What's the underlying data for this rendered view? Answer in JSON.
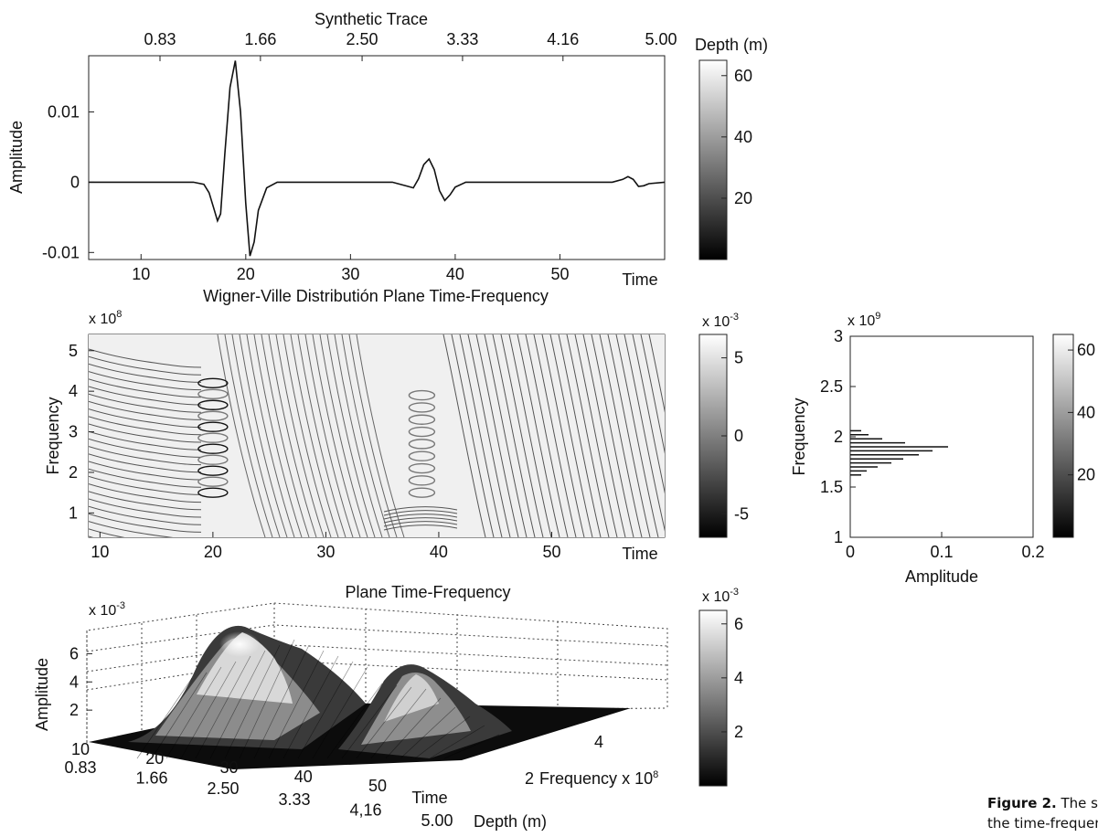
{
  "chart_data": [
    {
      "id": "trace",
      "type": "line",
      "title": "Synthetic Trace",
      "xlabel": "Time",
      "ylabel": "Amplitude",
      "xlim": [
        5,
        60
      ],
      "ylim": [
        -0.011,
        0.018
      ],
      "x_ticks": [
        10,
        20,
        30,
        40,
        50
      ],
      "y_ticks": [
        -0.01,
        0,
        0.01
      ],
      "y_tick_labels": [
        "-0.01",
        "0",
        "0.01"
      ],
      "top_axis_label": "",
      "top_ticks": [
        0.83,
        1.66,
        2.5,
        3.33,
        4.16,
        5.0
      ],
      "top_tick_labels": [
        "0.83",
        "1.66",
        "2.50",
        "3.33",
        "4.16",
        "5.00"
      ],
      "colorbar": {
        "label": "Depth (m)",
        "ticks": [
          20,
          40,
          60
        ],
        "range": [
          0,
          65
        ]
      },
      "series": [
        {
          "x": [
            5,
            10,
            15,
            16,
            16.5,
            17,
            17.3,
            17.6,
            18,
            18.5,
            19,
            19.5,
            20,
            20.4,
            20.8,
            21.2,
            22,
            23,
            25,
            30,
            34,
            35.5,
            36,
            36.5,
            37,
            37.5,
            38,
            38.5,
            39,
            39.5,
            40,
            41,
            45,
            50,
            55,
            56,
            56.5,
            57,
            57.5,
            58,
            58.5,
            60
          ],
          "y": [
            0,
            0,
            0,
            -0.0003,
            -0.0015,
            -0.004,
            -0.0055,
            -0.0045,
            0.004,
            0.0135,
            0.0173,
            0.01,
            -0.003,
            -0.0105,
            -0.0085,
            -0.004,
            -0.0008,
            0,
            0,
            0,
            0,
            -0.0006,
            -0.0008,
            0.0005,
            0.0025,
            0.0033,
            0.0018,
            -0.0012,
            -0.0026,
            -0.0018,
            -0.0007,
            0,
            0,
            0,
            0,
            0.0004,
            0.0008,
            0.0004,
            -0.0006,
            -0.0005,
            -0.0002,
            0
          ]
        }
      ]
    },
    {
      "id": "wvd",
      "type": "contour",
      "title": "Wigner-Ville Distributión  Plane Time-Frequency",
      "xlabel": "Time",
      "ylabel": "Frequency",
      "xlim": [
        9,
        60
      ],
      "ylim": [
        0.4,
        5.4
      ],
      "x_ticks": [
        10,
        20,
        30,
        40,
        50
      ],
      "y_ticks": [
        1,
        2,
        3,
        4,
        5
      ],
      "y_multiplier": "x 10",
      "y_multiplier_exp": "8",
      "colorbar": {
        "multiplier": "x 10",
        "multiplier_exp": "-3",
        "ticks": [
          -5,
          0,
          5
        ],
        "range": [
          -6.5,
          6.5
        ]
      },
      "energy_centers": [
        {
          "time": 20,
          "frequency_min": 1.5,
          "frequency_max": 4.2,
          "peak": 6
        },
        {
          "time": 38.5,
          "frequency_min": 1.5,
          "frequency_max": 3.9,
          "peak": 3.5
        }
      ]
    },
    {
      "id": "spectrum",
      "type": "line",
      "xlabel": "Amplitude",
      "ylabel": "Frequency",
      "xlim": [
        0,
        0.2
      ],
      "ylim": [
        1,
        3
      ],
      "x_ticks": [
        0,
        0.1,
        0.2
      ],
      "x_tick_labels": [
        "0",
        "0.1",
        "0.2"
      ],
      "y_ticks": [
        1,
        1.5,
        2,
        2.5,
        3
      ],
      "y_tick_labels": [
        "1",
        "1.5",
        "2",
        "2.5",
        "3"
      ],
      "y_multiplier": "x 10",
      "y_multiplier_exp": "9",
      "colorbar": {
        "ticks": [
          20,
          40,
          60
        ],
        "tick_labels": [
          "20",
          "40",
          "60"
        ],
        "range": [
          0,
          65
        ]
      },
      "series": [
        {
          "frequency": [
            1.62,
            1.66,
            1.7,
            1.74,
            1.78,
            1.82,
            1.86,
            1.9,
            1.94,
            1.98,
            2.02,
            2.06
          ],
          "amplitude": [
            0.012,
            0.018,
            0.03,
            0.045,
            0.058,
            0.075,
            0.09,
            0.107,
            0.06,
            0.035,
            0.02,
            0.012
          ]
        }
      ]
    },
    {
      "id": "surface",
      "type": "surface",
      "title": "Plane Time-Frequency",
      "zlabel": "Amplitude",
      "time_label": "Time",
      "depth_label": "Depth (m)",
      "frequency_label": "Frequency",
      "frequency_multiplier": "x 10",
      "frequency_multiplier_exp": "8",
      "z_multiplier": "x 10",
      "z_multiplier_exp": "-3",
      "z_ticks": [
        2,
        4,
        6
      ],
      "time_ticks": [
        10,
        20,
        30,
        40,
        50
      ],
      "depth_tick_labels": [
        "0.83",
        "1.66",
        "2.50",
        "3.33",
        "4,16",
        "5.00"
      ],
      "frequency_ticks": [
        2,
        4
      ],
      "colorbar": {
        "multiplier": "x 10",
        "multiplier_exp": "-3",
        "ticks": [
          2,
          4,
          6
        ],
        "range": [
          0,
          6.5
        ]
      },
      "peaks": [
        {
          "time": 20,
          "amplitude": 6.2
        },
        {
          "time": 38,
          "amplitude": 4.2
        }
      ]
    }
  ],
  "caption": {
    "bold": "Figure  2.",
    "line1": " The synthetic t",
    "line2": "the time-frequency plane"
  }
}
